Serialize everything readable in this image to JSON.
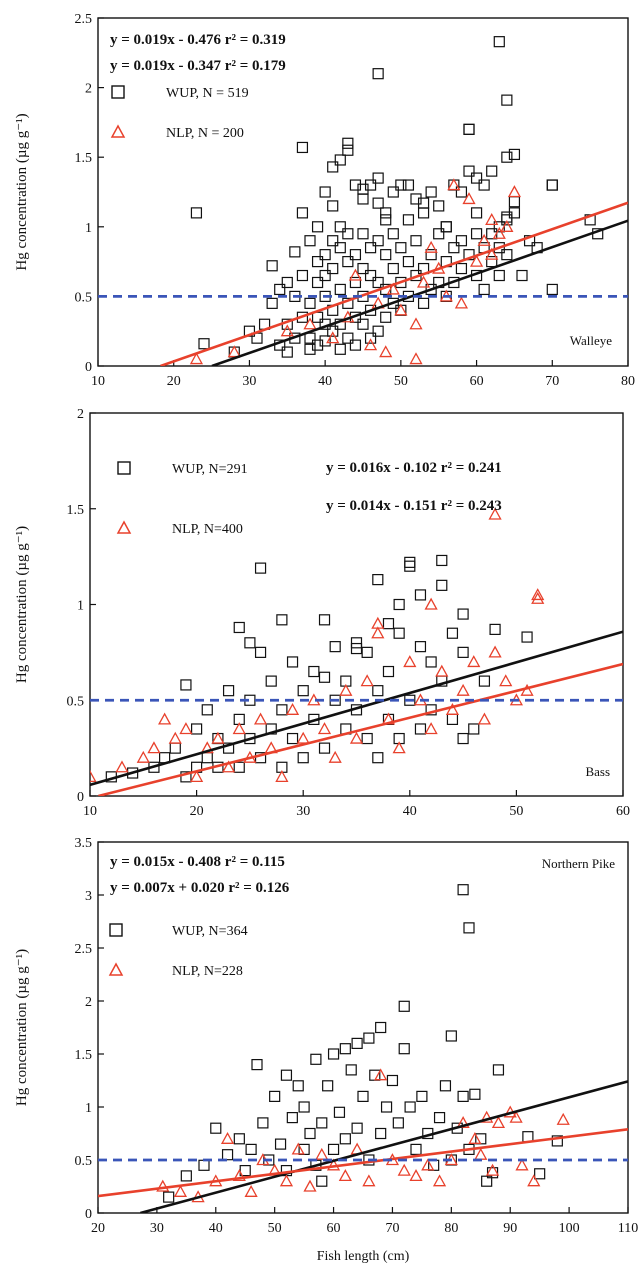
{
  "chart_data": [
    {
      "type": "scatter",
      "panel": "walleye",
      "title": "Walleye",
      "xlabel": "",
      "ylabel": "Hg concentration (µg g⁻¹)",
      "xlim": [
        10,
        80
      ],
      "ylim": [
        0,
        2.5
      ],
      "x_ticks": [
        10,
        20,
        30,
        40,
        50,
        60,
        70,
        80
      ],
      "y_ticks": [
        0,
        0.5,
        1,
        1.5,
        2,
        2.5
      ],
      "y_tick_labels": [
        "0",
        "0.5",
        "1",
        "1.5",
        "2",
        "2.5"
      ],
      "reference_line": 0.5,
      "equations": [
        "y = 0.019x - 0.476   r² = 0.319",
        "y = 0.019x - 0.347   r² = 0.179"
      ],
      "series": [
        {
          "name": "WUP, N = 519",
          "marker": "square",
          "color": "#111111",
          "fit": {
            "slope": 0.019,
            "intercept": -0.476,
            "r2": 0.319
          },
          "x": [
            23,
            24,
            28,
            30,
            31,
            32,
            33,
            33,
            34,
            34,
            35,
            35,
            35,
            36,
            36,
            36,
            37,
            37,
            37,
            38,
            38,
            38,
            38,
            39,
            39,
            39,
            39,
            39,
            40,
            40,
            40,
            40,
            40,
            40,
            41,
            41,
            41,
            41,
            41,
            42,
            42,
            42,
            42,
            42,
            42,
            43,
            43,
            43,
            43,
            43,
            44,
            44,
            44,
            44,
            44,
            45,
            45,
            45,
            45,
            45,
            46,
            46,
            46,
            46,
            46,
            47,
            47,
            47,
            47,
            48,
            48,
            48,
            48,
            49,
            49,
            49,
            49,
            50,
            50,
            50,
            50,
            51,
            51,
            51,
            52,
            52,
            52,
            53,
            53,
            53,
            54,
            54,
            54,
            55,
            55,
            55,
            56,
            56,
            56,
            57,
            57,
            57,
            58,
            58,
            58,
            59,
            59,
            60,
            60,
            60,
            61,
            61,
            61,
            62,
            62,
            62,
            63,
            63,
            63,
            64,
            64,
            64,
            65,
            65,
            66,
            67,
            68,
            70,
            70,
            75,
            76,
            37,
            41,
            43,
            45,
            47,
            47,
            48,
            51,
            53,
            56,
            59,
            59,
            60,
            63,
            64,
            64,
            65,
            70
          ],
          "y": [
            1.1,
            0.16,
            0.1,
            0.25,
            0.2,
            0.3,
            0.45,
            0.72,
            0.55,
            0.15,
            0.3,
            0.6,
            0.1,
            0.5,
            0.82,
            0.2,
            0.65,
            0.35,
            1.1,
            0.9,
            0.45,
            0.2,
            0.12,
            1.0,
            0.6,
            0.35,
            0.75,
            0.15,
            1.25,
            0.8,
            0.5,
            0.3,
            0.65,
            0.18,
            1.15,
            0.7,
            0.4,
            0.9,
            0.25,
            1.48,
            0.55,
            0.85,
            0.3,
            1.0,
            0.12,
            1.6,
            0.75,
            0.45,
            0.95,
            0.2,
            1.3,
            0.6,
            0.35,
            0.8,
            0.15,
            1.2,
            0.5,
            0.95,
            0.3,
            0.7,
            1.3,
            0.65,
            0.4,
            0.85,
            0.2,
            1.35,
            0.6,
            0.9,
            0.25,
            1.1,
            0.55,
            0.8,
            0.35,
            1.25,
            0.7,
            0.45,
            0.95,
            1.3,
            0.6,
            0.85,
            0.4,
            1.05,
            0.75,
            0.5,
            1.2,
            0.65,
            0.9,
            1.1,
            0.7,
            0.45,
            1.25,
            0.8,
            0.55,
            0.95,
            0.6,
            1.15,
            0.75,
            0.5,
            1.0,
            1.3,
            0.85,
            0.6,
            1.25,
            0.9,
            0.7,
            1.4,
            0.8,
            1.1,
            0.65,
            0.95,
            1.3,
            0.85,
            0.55,
            1.4,
            0.95,
            0.75,
            1.0,
            0.85,
            0.65,
            1.5,
            1.05,
            0.8,
            1.52,
            1.1,
            0.65,
            0.9,
            0.85,
            1.3,
            0.55,
            1.05,
            0.95,
            1.57,
            1.43,
            1.55,
            1.27,
            2.1,
            1.17,
            1.05,
            1.3,
            1.17,
            1.0,
            1.7,
            1.7,
            1.35,
            2.33,
            1.91,
            1.07,
            1.18,
            1.3
          ],
          "note": ""
        },
        {
          "name": "NLP, N = 200",
          "marker": "triangle",
          "color": "#e8412c",
          "fit": {
            "slope": 0.019,
            "intercept": -0.347,
            "r2": 0.179
          },
          "x": [
            23,
            28,
            35,
            38,
            41,
            43,
            46,
            48,
            49,
            50,
            52,
            53,
            55,
            56,
            57,
            58,
            60,
            61,
            62,
            62,
            63,
            64,
            65,
            52,
            47,
            44,
            54,
            59
          ],
          "y": [
            0.05,
            0.1,
            0.25,
            0.3,
            0.2,
            0.35,
            0.15,
            0.1,
            0.55,
            0.4,
            0.05,
            0.6,
            0.7,
            0.5,
            1.3,
            0.45,
            0.75,
            0.9,
            1.05,
            0.8,
            0.95,
            1.0,
            1.25,
            0.3,
            0.45,
            0.65,
            0.85,
            1.2
          ],
          "note": ""
        }
      ]
    },
    {
      "type": "scatter",
      "panel": "bass",
      "title": "Bass",
      "xlabel": "",
      "ylabel": "Hg concentration (µg g⁻¹)",
      "xlim": [
        10,
        60
      ],
      "ylim": [
        0,
        2
      ],
      "x_ticks": [
        10,
        20,
        30,
        40,
        50,
        60
      ],
      "y_ticks": [
        0,
        0.5,
        1,
        1.5,
        2
      ],
      "y_tick_labels": [
        "0",
        "0.5",
        "1",
        "1.5",
        "2"
      ],
      "reference_line": 0.5,
      "equations": [
        "y = 0.016x - 0.102   r² = 0.241",
        "y = 0.014x - 0.151   r² = 0.243"
      ],
      "series": [
        {
          "name": "WUP, N=291",
          "marker": "square",
          "color": "#111111",
          "fit": {
            "slope": 0.016,
            "intercept": -0.102,
            "r2": 0.241
          },
          "x": [
            12,
            14,
            16,
            17,
            18,
            19,
            19,
            20,
            20,
            21,
            21,
            22,
            22,
            23,
            23,
            24,
            24,
            24,
            25,
            25,
            25,
            26,
            26,
            27,
            27,
            28,
            28,
            29,
            29,
            30,
            30,
            31,
            31,
            32,
            32,
            33,
            33,
            34,
            34,
            35,
            35,
            36,
            36,
            37,
            37,
            38,
            38,
            39,
            39,
            40,
            40,
            41,
            41,
            42,
            42,
            43,
            43,
            44,
            44,
            45,
            45,
            46,
            47,
            48,
            51,
            26,
            28,
            32,
            35,
            37,
            38,
            39,
            40,
            41,
            43,
            45
          ],
          "y": [
            0.1,
            0.12,
            0.15,
            0.2,
            0.25,
            0.1,
            0.58,
            0.15,
            0.35,
            0.45,
            0.2,
            0.3,
            0.15,
            0.55,
            0.25,
            0.88,
            0.4,
            0.15,
            0.8,
            0.3,
            0.5,
            0.75,
            0.2,
            0.6,
            0.35,
            0.45,
            0.15,
            0.7,
            0.3,
            0.55,
            0.2,
            0.4,
            0.65,
            0.92,
            0.25,
            0.5,
            0.78,
            0.35,
            0.6,
            0.8,
            0.45,
            0.3,
            0.75,
            0.55,
            0.2,
            0.65,
            0.4,
            0.85,
            0.3,
            1.22,
            0.5,
            1.05,
            0.35,
            0.7,
            0.45,
            1.23,
            0.6,
            0.85,
            0.4,
            0.95,
            0.3,
            0.35,
            0.6,
            0.87,
            0.83,
            1.19,
            0.92,
            0.62,
            0.77,
            1.13,
            0.9,
            1.0,
            1.2,
            0.78,
            1.1,
            0.75
          ],
          "note": ""
        },
        {
          "name": "NLP, N=400",
          "marker": "triangle",
          "color": "#e8412c",
          "fit": {
            "slope": 0.014,
            "intercept": -0.151,
            "r2": 0.243
          },
          "x": [
            10,
            13,
            15,
            16,
            17,
            18,
            19,
            20,
            21,
            22,
            23,
            24,
            25,
            26,
            27,
            28,
            29,
            30,
            31,
            32,
            33,
            34,
            35,
            36,
            37,
            38,
            39,
            40,
            41,
            42,
            43,
            44,
            45,
            46,
            47,
            48,
            49,
            50,
            51,
            52,
            52,
            48,
            37,
            42
          ],
          "y": [
            0.1,
            0.15,
            0.2,
            0.25,
            0.4,
            0.3,
            0.35,
            0.1,
            0.25,
            0.3,
            0.15,
            0.35,
            0.2,
            0.4,
            0.25,
            0.1,
            0.45,
            0.3,
            0.5,
            0.35,
            0.2,
            0.55,
            0.3,
            0.6,
            0.85,
            0.4,
            0.25,
            0.7,
            0.5,
            0.35,
            0.65,
            0.45,
            0.55,
            0.7,
            0.4,
            0.75,
            0.6,
            0.5,
            0.55,
            1.05,
            1.03,
            1.47,
            0.9,
            1.0
          ],
          "note": ""
        }
      ]
    },
    {
      "type": "scatter",
      "panel": "northern-pike",
      "title": "Northern Pike",
      "xlabel": "Fish length (cm)",
      "ylabel": "Hg concentration (µg g⁻¹)",
      "xlim": [
        20,
        110
      ],
      "ylim": [
        0,
        3.5
      ],
      "x_ticks": [
        20,
        30,
        40,
        50,
        60,
        70,
        80,
        90,
        100,
        110
      ],
      "y_ticks": [
        0,
        0.5,
        1,
        1.5,
        2,
        2.5,
        3,
        3.5
      ],
      "y_tick_labels": [
        "0",
        "0.5",
        "1",
        "1.5",
        "2",
        "2.5",
        "3",
        "3.5"
      ],
      "reference_line": 0.5,
      "equations": [
        "y = 0.015x - 0.408   r² = 0.115",
        "y = 0.007x + 0.020   r² = 0.126"
      ],
      "series": [
        {
          "name": "WUP, N=364",
          "marker": "square",
          "color": "#111111",
          "fit": {
            "slope": 0.015,
            "intercept": -0.408,
            "r2": 0.115
          },
          "x": [
            32,
            35,
            38,
            40,
            42,
            44,
            45,
            46,
            47,
            48,
            49,
            50,
            51,
            52,
            52,
            53,
            54,
            55,
            55,
            56,
            57,
            57,
            58,
            58,
            59,
            60,
            60,
            61,
            62,
            62,
            63,
            64,
            64,
            65,
            66,
            66,
            67,
            68,
            68,
            69,
            70,
            71,
            72,
            73,
            74,
            75,
            76,
            77,
            78,
            79,
            80,
            81,
            82,
            83,
            84,
            85,
            86,
            88,
            93,
            95,
            98,
            72,
            80,
            82,
            83,
            87
          ],
          "y": [
            0.15,
            0.35,
            0.45,
            0.8,
            0.55,
            0.7,
            0.4,
            0.6,
            1.4,
            0.85,
            0.5,
            1.1,
            0.65,
            1.3,
            0.4,
            0.9,
            1.2,
            0.6,
            1.0,
            0.75,
            1.45,
            0.45,
            0.85,
            0.3,
            1.2,
            1.5,
            0.6,
            0.95,
            1.55,
            0.7,
            1.35,
            0.8,
            1.6,
            1.1,
            0.5,
            1.65,
            1.3,
            0.75,
            1.75,
            1.0,
            1.25,
            0.85,
            1.55,
            1.0,
            0.6,
            1.1,
            0.75,
            0.45,
            0.9,
            1.2,
            0.5,
            0.8,
            1.1,
            0.6,
            1.12,
            0.7,
            0.3,
            1.35,
            0.72,
            0.37,
            0.68,
            1.95,
            1.67,
            3.05,
            2.69,
            0.38
          ],
          "note": ""
        },
        {
          "name": "NLP, N=228",
          "marker": "triangle",
          "color": "#e8412c",
          "fit": {
            "slope": 0.007,
            "intercept": 0.02,
            "r2": 0.126
          },
          "x": [
            31,
            34,
            37,
            40,
            42,
            44,
            46,
            48,
            50,
            52,
            54,
            56,
            58,
            60,
            62,
            64,
            66,
            68,
            70,
            72,
            74,
            76,
            78,
            80,
            82,
            84,
            86,
            88,
            90,
            91,
            92,
            94,
            99,
            85,
            87
          ],
          "y": [
            0.25,
            0.2,
            0.15,
            0.3,
            0.7,
            0.35,
            0.2,
            0.5,
            0.4,
            0.3,
            0.6,
            0.25,
            0.55,
            0.45,
            0.35,
            0.6,
            0.3,
            1.3,
            0.5,
            0.4,
            0.35,
            0.45,
            0.3,
            0.5,
            0.85,
            0.7,
            0.9,
            0.85,
            0.95,
            0.9,
            0.45,
            0.3,
            0.88,
            0.55,
            0.4
          ],
          "note": ""
        }
      ]
    }
  ]
}
